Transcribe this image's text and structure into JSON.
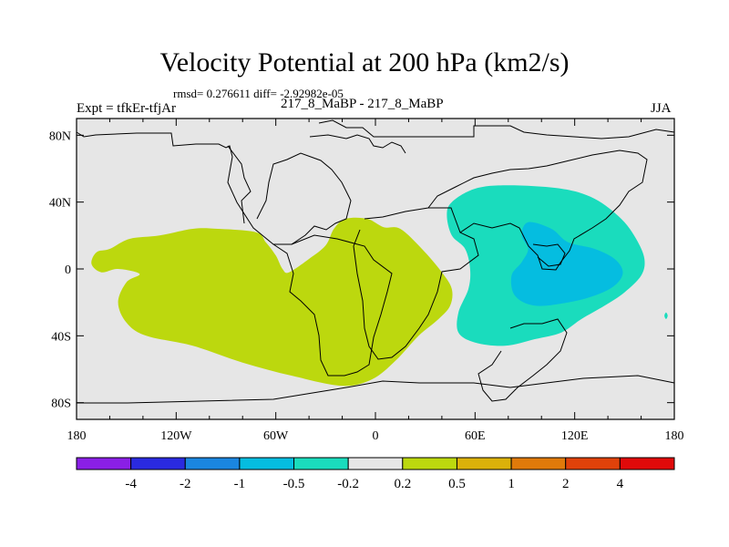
{
  "header": {
    "title": "Velocity Potential at 200 hPa (km2/s)",
    "stats": "rmsd= 0.276611 diff= -2.92982e-05",
    "expt": "Expt = tfkEr-tfjAr",
    "cases": "217_8_MaBP - 217_8_MaBP",
    "season": "JJA"
  },
  "chart_data": {
    "type": "heatmap",
    "title": "Velocity Potential at 200 hPa (km2/s)",
    "xlabel": "",
    "ylabel": "",
    "x_ticks": [
      "180",
      "120W",
      "60W",
      "0",
      "60E",
      "120E",
      "180"
    ],
    "y_ticks": [
      "80N",
      "40N",
      "0",
      "40S",
      "80S"
    ],
    "xlim": [
      -180,
      180
    ],
    "ylim": [
      -90,
      90
    ],
    "background_color": "#e6e6e6",
    "colorbar": {
      "labels": [
        "-4",
        "-2",
        "-1",
        "-0.5",
        "-0.2",
        "0.2",
        "0.5",
        "1",
        "2",
        "4"
      ],
      "colors": [
        "#8a1fe6",
        "#2a2ae0",
        "#1a86e0",
        "#05bde0",
        "#1adcbd",
        "#e6e6e6",
        "#bcd80e",
        "#dbb10a",
        "#e07a0a",
        "#e0420a",
        "#e00a0a"
      ]
    },
    "regions": [
      {
        "name": "positive-0.2-0.5",
        "color": "#bcd80e",
        "lonlat": [
          [
            -160,
            12
          ],
          [
            -148,
            18
          ],
          [
            -130,
            20
          ],
          [
            -110,
            24
          ],
          [
            -95,
            24
          ],
          [
            -72,
            22
          ],
          [
            -66,
            16
          ],
          [
            -60,
            8
          ],
          [
            -56,
            0
          ],
          [
            -52,
            -2
          ],
          [
            -40,
            6
          ],
          [
            -30,
            14
          ],
          [
            -25,
            24
          ],
          [
            -18,
            30
          ],
          [
            -5,
            30
          ],
          [
            5,
            25
          ],
          [
            15,
            24
          ],
          [
            28,
            12
          ],
          [
            40,
            -2
          ],
          [
            46,
            -12
          ],
          [
            45,
            -22
          ],
          [
            38,
            -30
          ],
          [
            26,
            -40
          ],
          [
            12,
            -55
          ],
          [
            -2,
            -66
          ],
          [
            -20,
            -70
          ],
          [
            -50,
            -64
          ],
          [
            -80,
            -56
          ],
          [
            -110,
            -46
          ],
          [
            -138,
            -40
          ],
          [
            -150,
            -32
          ],
          [
            -155,
            -20
          ],
          [
            -150,
            -8
          ],
          [
            -142,
            -3
          ],
          [
            -155,
            0
          ],
          [
            -165,
            -2
          ],
          [
            -171,
            3
          ],
          [
            -168,
            10
          ]
        ]
      },
      {
        "name": "negative-0.2-0.5",
        "color": "#1adcbd",
        "lonlat": [
          [
            46,
            40
          ],
          [
            60,
            48
          ],
          [
            80,
            50
          ],
          [
            112,
            48
          ],
          [
            132,
            42
          ],
          [
            148,
            30
          ],
          [
            157,
            18
          ],
          [
            162,
            6
          ],
          [
            160,
            -4
          ],
          [
            150,
            -14
          ],
          [
            138,
            -22
          ],
          [
            124,
            -30
          ],
          [
            112,
            -38
          ],
          [
            96,
            -42
          ],
          [
            78,
            -46
          ],
          [
            60,
            -44
          ],
          [
            50,
            -38
          ],
          [
            50,
            -26
          ],
          [
            56,
            -12
          ],
          [
            57,
            0
          ],
          [
            54,
            12
          ],
          [
            46,
            20
          ],
          [
            43,
            32
          ]
        ]
      },
      {
        "name": "negative-0.5-1",
        "color": "#05bde0",
        "lonlat": [
          [
            92,
            28
          ],
          [
            106,
            24
          ],
          [
            116,
            16
          ],
          [
            132,
            12
          ],
          [
            144,
            6
          ],
          [
            149,
            -2
          ],
          [
            144,
            -10
          ],
          [
            132,
            -16
          ],
          [
            116,
            -20
          ],
          [
            96,
            -22
          ],
          [
            84,
            -16
          ],
          [
            82,
            -4
          ],
          [
            88,
            4
          ],
          [
            92,
            12
          ],
          [
            88,
            20
          ]
        ]
      },
      {
        "name": "negative-0.2-0.5-spot",
        "color": "#1adcbd",
        "lonlat": [
          [
            175,
            -26
          ],
          [
            176,
            -28
          ],
          [
            175,
            -30
          ],
          [
            174,
            -28
          ]
        ]
      }
    ]
  }
}
